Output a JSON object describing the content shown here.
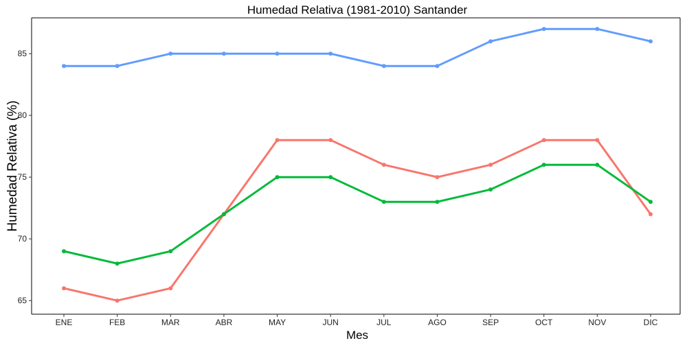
{
  "chart_data": {
    "type": "line",
    "title": "Humedad Relativa (1981-2010)  Santander",
    "xlabel": "Mes",
    "ylabel": "Humedad Relativa  (%)",
    "categories": [
      "ENE",
      "FEB",
      "MAR",
      "ABR",
      "MAY",
      "JUN",
      "JUL",
      "AGO",
      "SEP",
      "OCT",
      "NOV",
      "DIC"
    ],
    "yticks": [
      65,
      70,
      75,
      80,
      85
    ],
    "ylim": [
      63.9,
      87.9
    ],
    "grid": false,
    "series": [
      {
        "color": "#619CFF",
        "values": [
          84,
          84,
          85,
          85,
          85,
          85,
          84,
          84,
          86,
          87,
          87,
          86
        ]
      },
      {
        "color": "#F8766D",
        "values": [
          66,
          65,
          66,
          72,
          78,
          78,
          76,
          75,
          76,
          78,
          78,
          72
        ]
      },
      {
        "color": "#00BA38",
        "values": [
          69,
          68,
          69,
          72,
          75,
          75,
          73,
          73,
          74,
          76,
          76,
          73
        ]
      }
    ]
  }
}
